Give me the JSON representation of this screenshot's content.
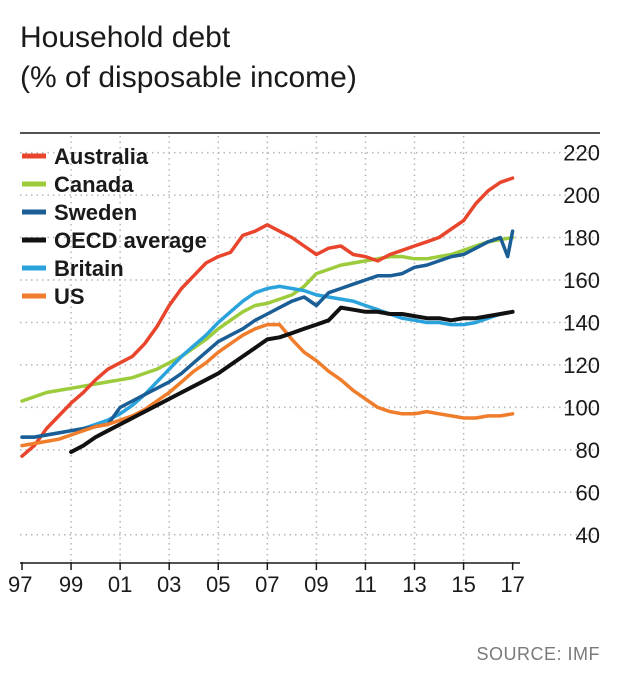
{
  "header": {
    "title": "Household debt",
    "subtitle": "(% of disposable income)"
  },
  "source": "SOURCE: IMF",
  "chart_data": {
    "type": "line",
    "title": "Household debt",
    "subtitle": "(% of disposable income)",
    "xlabel": "",
    "ylabel": "",
    "xlim": [
      1997,
      2017.3
    ],
    "ylim": [
      30,
      225
    ],
    "x_ticks": [
      1997,
      1999,
      2001,
      2003,
      2005,
      2007,
      2009,
      2011,
      2013,
      2015,
      2017
    ],
    "x_tick_labels": [
      "97",
      "99",
      "01",
      "03",
      "05",
      "07",
      "09",
      "11",
      "13",
      "15",
      "17"
    ],
    "y_ticks": [
      40,
      60,
      80,
      100,
      120,
      140,
      160,
      180,
      200,
      220
    ],
    "y_tick_labels": [
      "40",
      "60",
      "80",
      "100",
      "120",
      "140",
      "160",
      "180",
      "200",
      "220"
    ],
    "grid": "dotted",
    "legend_position": "top-left",
    "series": [
      {
        "name": "Australia",
        "color": "#e8452c",
        "x": [
          1997,
          1997.5,
          1998,
          1998.5,
          1999,
          1999.5,
          2000,
          2000.5,
          2001,
          2001.5,
          2002,
          2002.5,
          2003,
          2003.5,
          2004,
          2004.5,
          2005,
          2005.5,
          2006,
          2006.5,
          2007,
          2007.5,
          2008,
          2008.5,
          2009,
          2009.5,
          2010,
          2010.5,
          2011,
          2011.5,
          2012,
          2012.5,
          2013,
          2013.5,
          2014,
          2014.5,
          2015,
          2015.5,
          2016,
          2016.5,
          2017
        ],
        "values": [
          77,
          82,
          90,
          96,
          102,
          107,
          113,
          118,
          121,
          124,
          130,
          138,
          148,
          156,
          162,
          168,
          171,
          173,
          181,
          183,
          186,
          183,
          180,
          176,
          172,
          175,
          176,
          172,
          171,
          169,
          172,
          174,
          176,
          178,
          180,
          184,
          188,
          196,
          202,
          206,
          208
        ]
      },
      {
        "name": "Canada",
        "color": "#9ccc3c",
        "x": [
          1997,
          1997.5,
          1998,
          1998.5,
          1999,
          1999.5,
          2000,
          2000.5,
          2001,
          2001.5,
          2002,
          2002.5,
          2003,
          2003.5,
          2004,
          2004.5,
          2005,
          2005.5,
          2006,
          2006.5,
          2007,
          2007.5,
          2008,
          2008.5,
          2009,
          2009.5,
          2010,
          2010.5,
          2011,
          2011.5,
          2012,
          2012.5,
          2013,
          2013.5,
          2014,
          2014.5,
          2015,
          2015.5,
          2016,
          2016.5,
          2017
        ],
        "values": [
          103,
          105,
          107,
          108,
          109,
          110,
          111,
          112,
          113,
          114,
          116,
          118,
          121,
          124,
          128,
          132,
          137,
          141,
          145,
          148,
          149,
          151,
          153,
          157,
          163,
          165,
          167,
          168,
          169,
          170,
          171,
          171,
          170,
          170,
          171,
          172,
          174,
          176,
          178,
          179,
          180
        ]
      },
      {
        "name": "Sweden",
        "color": "#1b5e96",
        "x": [
          1997,
          1997.5,
          1998,
          1998.5,
          1999,
          1999.5,
          2000,
          2000.5,
          2001,
          2001.5,
          2002,
          2002.5,
          2003,
          2003.5,
          2004,
          2004.5,
          2005,
          2005.5,
          2006,
          2006.5,
          2007,
          2007.5,
          2008,
          2008.5,
          2009,
          2009.5,
          2010,
          2010.5,
          2011,
          2011.5,
          2012,
          2012.5,
          2013,
          2013.5,
          2014,
          2014.5,
          2015,
          2015.5,
          2016,
          2016.5,
          2016.8,
          2017
        ],
        "values": [
          86,
          86,
          87,
          88,
          89,
          90,
          91,
          92,
          100,
          103,
          106,
          109,
          112,
          116,
          121,
          126,
          131,
          134,
          137,
          141,
          144,
          147,
          150,
          152,
          148,
          154,
          156,
          158,
          160,
          162,
          162,
          163,
          166,
          167,
          169,
          171,
          172,
          175,
          178,
          180,
          171,
          183
        ]
      },
      {
        "name": "OECD average",
        "color": "#111111",
        "x": [
          1999,
          1999.5,
          2000,
          2000.5,
          2001,
          2001.5,
          2002,
          2002.5,
          2003,
          2003.5,
          2004,
          2004.5,
          2005,
          2005.5,
          2006,
          2006.5,
          2007,
          2007.5,
          2008,
          2008.5,
          2009,
          2009.5,
          2010,
          2010.5,
          2011,
          2011.5,
          2012,
          2012.5,
          2013,
          2013.5,
          2014,
          2014.5,
          2015,
          2015.5,
          2016,
          2016.5,
          2017
        ],
        "values": [
          79,
          82,
          86,
          89,
          92,
          95,
          98,
          101,
          104,
          107,
          110,
          113,
          116,
          120,
          124,
          128,
          132,
          133,
          135,
          137,
          139,
          141,
          147,
          146,
          145,
          145,
          144,
          144,
          143,
          142,
          142,
          141,
          142,
          142,
          143,
          144,
          145
        ]
      },
      {
        "name": "Britain",
        "color": "#2aa3dc",
        "x": [
          1997,
          1997.5,
          1998,
          1998.5,
          1999,
          1999.5,
          2000,
          2000.5,
          2001,
          2001.5,
          2002,
          2002.5,
          2003,
          2003.5,
          2004,
          2004.5,
          2005,
          2005.5,
          2006,
          2006.5,
          2007,
          2007.5,
          2008,
          2008.5,
          2009,
          2009.5,
          2010,
          2010.5,
          2011,
          2011.5,
          2012,
          2012.5,
          2013,
          2013.5,
          2014,
          2014.5,
          2015,
          2015.5,
          2016,
          2016.5,
          2017
        ],
        "values": [
          86,
          86,
          87,
          88,
          89,
          90,
          92,
          94,
          97,
          101,
          106,
          112,
          118,
          124,
          129,
          134,
          140,
          145,
          150,
          154,
          156,
          157,
          156,
          155,
          153,
          152,
          151,
          150,
          148,
          146,
          144,
          142,
          141,
          140,
          140,
          139,
          139,
          140,
          142,
          144,
          145
        ]
      },
      {
        "name": "US",
        "color": "#ef7d2b",
        "x": [
          1997,
          1997.5,
          1998,
          1998.5,
          1999,
          1999.5,
          2000,
          2000.5,
          2001,
          2001.5,
          2002,
          2002.5,
          2003,
          2003.5,
          2004,
          2004.5,
          2005,
          2005.5,
          2006,
          2006.5,
          2007,
          2007.5,
          2008,
          2008.5,
          2009,
          2009.5,
          2010,
          2010.5,
          2011,
          2011.5,
          2012,
          2012.5,
          2013,
          2013.5,
          2014,
          2014.5,
          2015,
          2015.5,
          2016,
          2016.5,
          2017
        ],
        "values": [
          82,
          83,
          84,
          85,
          87,
          89,
          91,
          92,
          94,
          96,
          99,
          103,
          107,
          112,
          117,
          121,
          126,
          130,
          134,
          137,
          139,
          139,
          132,
          126,
          122,
          117,
          113,
          108,
          104,
          100,
          98,
          97,
          97,
          98,
          97,
          96,
          95,
          95,
          96,
          96,
          97
        ]
      }
    ]
  }
}
